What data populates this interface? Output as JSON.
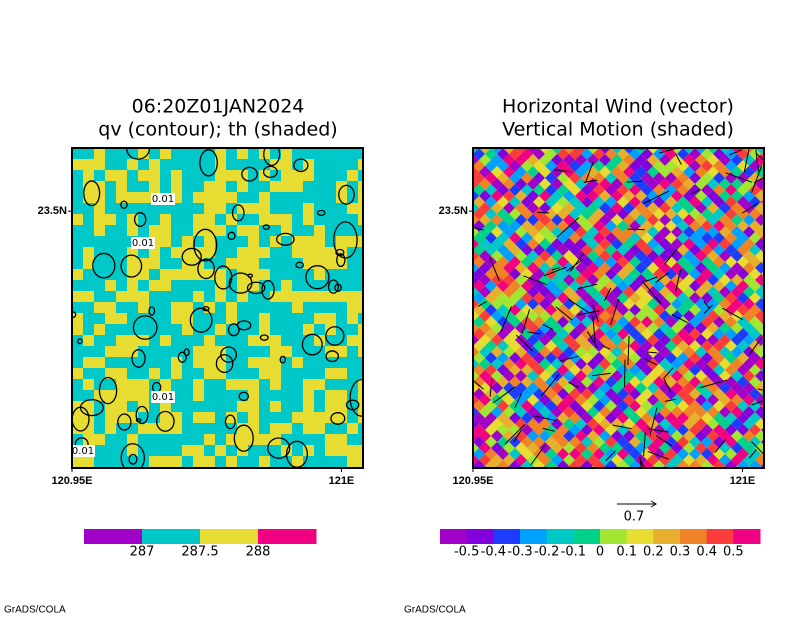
{
  "chart_data": [
    {
      "type": "heatmap",
      "title": [
        "06:20Z01JAN2024",
        "qv (contour); th (shaded)"
      ],
      "xlim": [
        120.95,
        121.004
      ],
      "ylim": [
        23.4524,
        23.5117
      ],
      "xticks": [
        {
          "value": 120.95,
          "label": "120.95E"
        },
        {
          "value": 121,
          "label": "121E"
        }
      ],
      "yticks": [
        {
          "value": 23.5,
          "label": "23.5N"
        }
      ],
      "levels": [
        287,
        287.5,
        288
      ],
      "colors": [
        "#a000c8",
        "#00c8c8",
        "#e6dc32",
        "#f00082"
      ],
      "contour_labels": [
        0.01,
        0.01,
        0.01,
        0.01
      ],
      "footer": "GrADS/COLA"
    },
    {
      "type": "heatmap",
      "title": [
        "Horizontal Wind (vector)",
        "Vertical Motion (shaded)"
      ],
      "xlim": [
        120.95,
        121.004
      ],
      "ylim": [
        23.4524,
        23.5117
      ],
      "xticks": [
        {
          "value": 120.95,
          "label": "120.95E"
        },
        {
          "value": 121,
          "label": "121E"
        }
      ],
      "yticks": [
        {
          "value": 23.5,
          "label": "23.5N"
        }
      ],
      "levels": [
        -0.5,
        -0.4,
        -0.3,
        -0.2,
        -0.1,
        0,
        0.1,
        0.2,
        0.3,
        0.4,
        0.5
      ],
      "colors": [
        "#a000c8",
        "#8200dc",
        "#1e3cff",
        "#00a0ff",
        "#00c8c8",
        "#00d28c",
        "#a0e632",
        "#e6dc32",
        "#e6af2d",
        "#f08228",
        "#fa3c3c",
        "#f00082"
      ],
      "vector_ref": 0.7,
      "footer": "GrADS/COLA"
    }
  ]
}
